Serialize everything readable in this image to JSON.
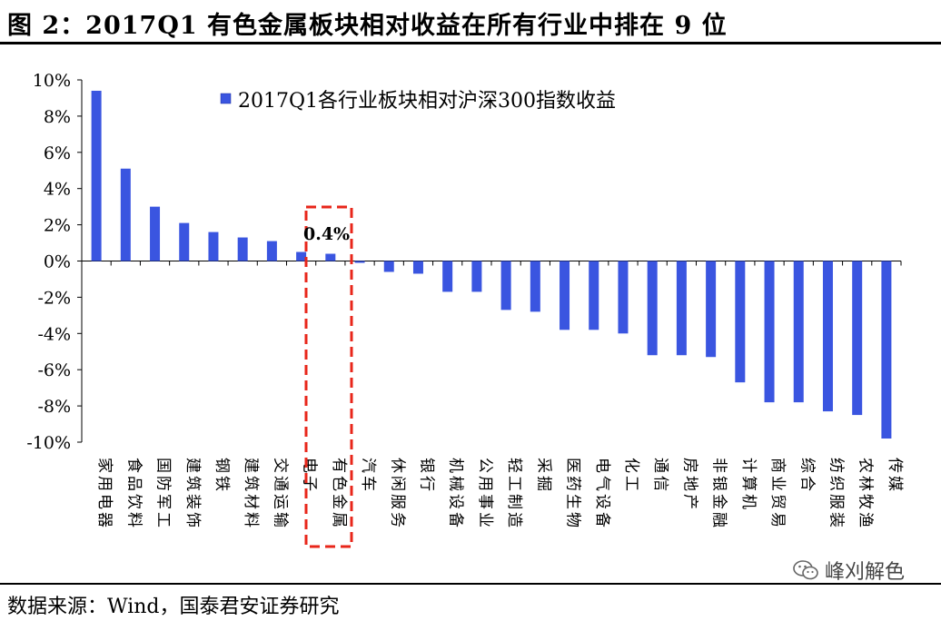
{
  "figure": {
    "title": "图 2：2017Q1 有色金属板块相对收益在所有行业中排在 9 位",
    "source": "数据来源：Wind，国泰君安证券研究",
    "watermark": "峰刈解色",
    "highlight_label": "0.4%"
  },
  "chart_data": {
    "type": "bar",
    "title": "",
    "xlabel": "",
    "ylabel": "",
    "ylim": [
      -10,
      10
    ],
    "yticks": [
      "10%",
      "8%",
      "6%",
      "4%",
      "2%",
      "0%",
      "-2%",
      "-4%",
      "-6%",
      "-8%",
      "-10%"
    ],
    "ytick_values": [
      10,
      8,
      6,
      4,
      2,
      0,
      -2,
      -4,
      -6,
      -8,
      -10
    ],
    "legend": "top-center",
    "grid": false,
    "bar_color": "#3a55e0",
    "highlight_color": "#e8261a",
    "highlight_category": "有色金属",
    "categories": [
      "家用电器",
      "食品饮料",
      "国防军工",
      "建筑装饰",
      "钢铁",
      "建筑材料",
      "交通运输",
      "电子",
      "有色金属",
      "汽车",
      "休闲服务",
      "银行",
      "机械设备",
      "公用事业",
      "轻工制造",
      "采掘",
      "医药生物",
      "电气设备",
      "化工",
      "通信",
      "房地产",
      "非银金融",
      "计算机",
      "商业贸易",
      "综合",
      "纺织服装",
      "农林牧渔",
      "传媒"
    ],
    "series": [
      {
        "name": "2017Q1各行业板块相对沪深300指数收益",
        "values": [
          9.4,
          5.1,
          3.0,
          2.1,
          1.6,
          1.3,
          1.1,
          0.5,
          0.4,
          -0.1,
          -0.6,
          -0.7,
          -1.7,
          -1.7,
          -2.7,
          -2.8,
          -3.8,
          -3.8,
          -4.0,
          -5.2,
          -5.2,
          -5.3,
          -6.7,
          -7.8,
          -7.8,
          -8.3,
          -8.5,
          -9.8
        ]
      }
    ]
  }
}
